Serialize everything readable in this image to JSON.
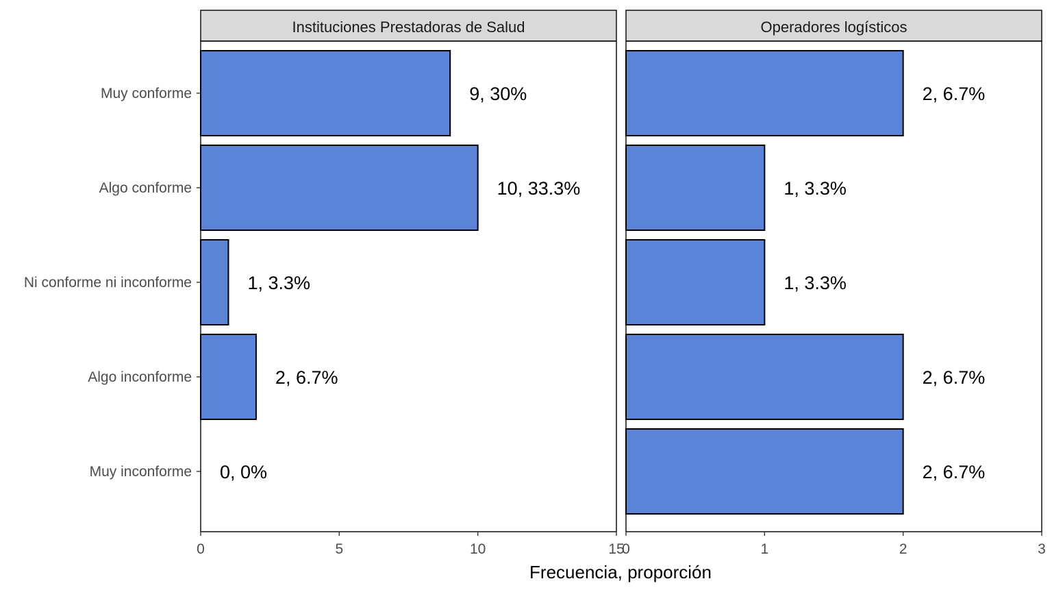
{
  "chart_data": {
    "type": "bar",
    "orientation": "horizontal",
    "categories": [
      "Muy conforme",
      "Algo conforme",
      "Ni conforme ni inconforme",
      "Algo inconforme",
      "Muy inconforme"
    ],
    "xlabel": "Frecuencia, proporción",
    "ylabel": "",
    "bar_color": "#5b84d6",
    "grid": false,
    "panels": [
      {
        "title": "Instituciones Prestadoras de Salud",
        "values": [
          9,
          10,
          1,
          2,
          0
        ],
        "labels": [
          "9, 30%",
          "10, 33.3%",
          "1, 3.3%",
          "2, 6.7%",
          "0, 0%"
        ],
        "xlim": [
          0,
          15
        ],
        "xticks": [
          0,
          5,
          10,
          15
        ],
        "xtick_labels": [
          "0",
          "5",
          "10",
          "15"
        ]
      },
      {
        "title": "Operadores logísticos",
        "values": [
          2,
          1,
          1,
          2,
          2
        ],
        "labels": [
          "2, 6.7%",
          "1, 3.3%",
          "1, 3.3%",
          "2, 6.7%",
          "2, 6.7%"
        ],
        "xlim": [
          0,
          3
        ],
        "xticks": [
          0,
          1,
          2,
          3
        ],
        "xtick_labels": [
          "0",
          "1",
          "2",
          "3"
        ]
      }
    ]
  }
}
